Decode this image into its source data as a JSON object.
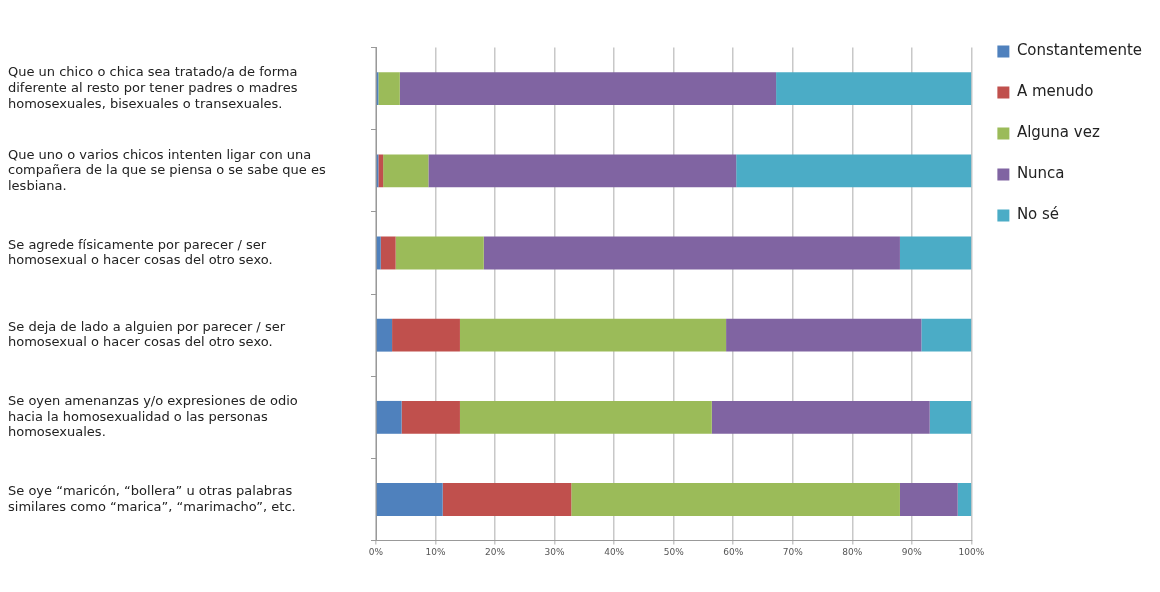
{
  "chart_data": {
    "type": "bar",
    "orientation": "horizontal",
    "stacked": true,
    "categories": [
      "Que un chico o chica sea tratado/a de forma diferente al resto por tener padres o madres homosexuales, bisexuales o transexuales.",
      "Que uno o varios chicos intenten ligar con una compañera de la que se piensa o se sabe que es lesbiana.",
      "Se agrede físicamente por parecer / ser homosexual o hacer cosas del otro sexo.",
      "Se deja de lado a alguien por parecer / ser homosexual o hacer cosas del otro sexo.",
      "Se oyen amenanzas y/o expresiones de odio hacia la homosexualidad o las personas homosexuales.",
      "Se oye “maricón, “bollera” u otras palabras similares como “marica”, “marimacho”, etc."
    ],
    "series": [
      {
        "name": "Constantemente",
        "color": "#4f81bd",
        "values": [
          0.4,
          0.4,
          0.8,
          2.7,
          4.3,
          11.2
        ]
      },
      {
        "name": "A menudo",
        "color": "#c0504d",
        "values": [
          0,
          0.8,
          2.5,
          11.4,
          9.8,
          21.6
        ]
      },
      {
        "name": "Alguna vez",
        "color": "#9bbb59",
        "values": [
          3.6,
          7.6,
          14.8,
          44.7,
          42.3,
          55.2
        ]
      },
      {
        "name": "Nunca",
        "color": "#8064a2",
        "values": [
          63.2,
          51.7,
          69.9,
          32.8,
          36.6,
          9.7
        ]
      },
      {
        "name": "No sé",
        "color": "#4bacc6",
        "values": [
          32.8,
          39.5,
          12.0,
          8.4,
          7.0,
          2.3
        ]
      }
    ],
    "xlim": [
      0,
      100
    ],
    "xticks": [
      {
        "value": 0,
        "label": "0%"
      },
      {
        "value": 10,
        "label": "10%"
      },
      {
        "value": 20,
        "label": "20%"
      },
      {
        "value": 30,
        "label": "30%"
      },
      {
        "value": 40,
        "label": "40%"
      },
      {
        "value": 50,
        "label": "50%"
      },
      {
        "value": 60,
        "label": "60%"
      },
      {
        "value": 70,
        "label": "70%"
      },
      {
        "value": 80,
        "label": "80%"
      },
      {
        "value": 90,
        "label": "90%"
      },
      {
        "value": 100,
        "label": "100%"
      }
    ],
    "grid": "x",
    "legend": "top right"
  }
}
